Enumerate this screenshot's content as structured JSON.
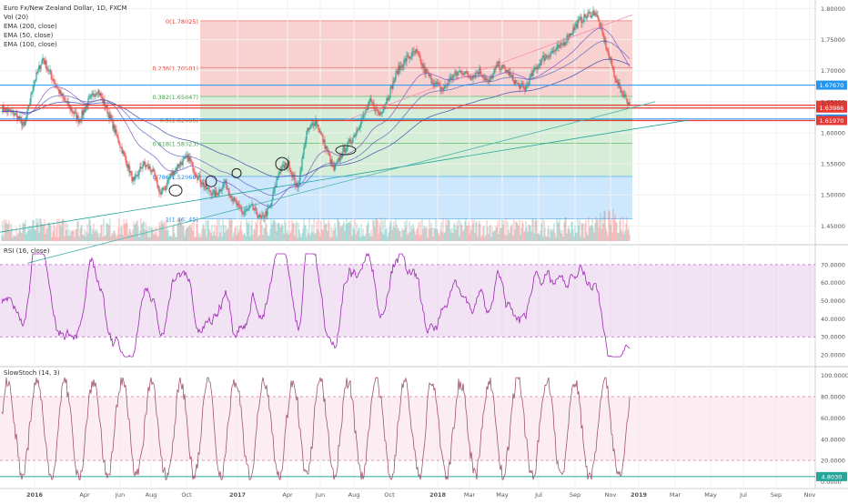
{
  "header": {
    "title": "Euro Fx/New Zealand Dollar, 1D, FXCM",
    "indicators": [
      "Vol (20)",
      "EMA (200, close)",
      "EMA (50, close)",
      "EMA (100, close)"
    ]
  },
  "panes": {
    "rsi_title": "RSI (16, close)",
    "stoch_title": "SlowStoch (14, 3)"
  },
  "colors": {
    "up": "#26a69a",
    "down": "#ef5350",
    "rsi": "#9c27b0",
    "stoch": "#a0546a",
    "fib_red": "#ef9a9a",
    "fib_green": "#a5d6a7",
    "fib_blue": "#90caf9"
  },
  "chart_data": [
    {
      "type": "candlestick",
      "pane": "price",
      "ylim": [
        1.43,
        1.805
      ],
      "y_ticks": [
        "1.80000",
        "1.75000",
        "1.70000",
        "1.65000",
        "1.60000",
        "1.55000",
        "1.50000",
        "1.45000"
      ],
      "x_ticks": [
        "2016",
        "Apr",
        "Jun",
        "Aug",
        "Oct",
        "2017",
        "Apr",
        "Jun",
        "Aug",
        "Oct",
        "2018",
        "Mar",
        "May",
        "Jul",
        "Sep",
        "Nov",
        "2019",
        "Mar",
        "May",
        "Jul",
        "Sep",
        "Nov"
      ],
      "fib_levels": [
        {
          "label": "0(1.78025)",
          "value": 1.78025
        },
        {
          "label": "0.236(1.70501)",
          "value": 1.70501
        },
        {
          "label": "0.382(1.65847)",
          "value": 1.65847
        },
        {
          "label": "0.5(1.62085)",
          "value": 1.62085
        },
        {
          "label": "0.618(1.58323)",
          "value": 1.58323
        },
        {
          "label": "0.786(1.52968)",
          "value": 1.52968
        },
        {
          "label": "1(1.46145)",
          "value": 1.46145
        }
      ],
      "price_labels": [
        {
          "text": "1.67670",
          "value": 1.6767,
          "color": "#2196f3"
        },
        {
          "text": "1.64438",
          "value": 1.64438,
          "color": "#e53935"
        },
        {
          "text": "1.63986",
          "value": 1.63986,
          "color": "#e53935"
        },
        {
          "text": "1.62220",
          "value": 1.6222,
          "color": "#2196f3"
        },
        {
          "text": "1.61970",
          "value": 1.6197,
          "color": "#e53935"
        }
      ],
      "close_anchors": [
        [
          0,
          1.64
        ],
        [
          15,
          1.63
        ],
        [
          25,
          1.61
        ],
        [
          35,
          1.68
        ],
        [
          45,
          1.72
        ],
        [
          55,
          1.69
        ],
        [
          65,
          1.66
        ],
        [
          75,
          1.64
        ],
        [
          85,
          1.62
        ],
        [
          95,
          1.65
        ],
        [
          105,
          1.67
        ],
        [
          115,
          1.64
        ],
        [
          125,
          1.6
        ],
        [
          135,
          1.56
        ],
        [
          145,
          1.52
        ],
        [
          155,
          1.55
        ],
        [
          165,
          1.54
        ],
        [
          175,
          1.5
        ],
        [
          185,
          1.53
        ],
        [
          195,
          1.55
        ],
        [
          205,
          1.56
        ],
        [
          215,
          1.53
        ],
        [
          225,
          1.51
        ],
        [
          235,
          1.5
        ],
        [
          245,
          1.52
        ],
        [
          255,
          1.49
        ],
        [
          265,
          1.47
        ],
        [
          275,
          1.48
        ],
        [
          285,
          1.46
        ],
        [
          295,
          1.48
        ],
        [
          305,
          1.54
        ],
        [
          315,
          1.55
        ],
        [
          325,
          1.51
        ],
        [
          335,
          1.6
        ],
        [
          345,
          1.62
        ],
        [
          355,
          1.58
        ],
        [
          365,
          1.54
        ],
        [
          375,
          1.57
        ],
        [
          385,
          1.59
        ],
        [
          395,
          1.62
        ],
        [
          405,
          1.65
        ],
        [
          415,
          1.63
        ],
        [
          425,
          1.66
        ],
        [
          435,
          1.7
        ],
        [
          445,
          1.72
        ],
        [
          455,
          1.73
        ],
        [
          465,
          1.7
        ],
        [
          475,
          1.68
        ],
        [
          485,
          1.67
        ],
        [
          495,
          1.69
        ],
        [
          505,
          1.7
        ],
        [
          515,
          1.69
        ],
        [
          525,
          1.7
        ],
        [
          535,
          1.68
        ],
        [
          545,
          1.71
        ],
        [
          555,
          1.7
        ],
        [
          565,
          1.68
        ],
        [
          575,
          1.67
        ],
        [
          585,
          1.7
        ],
        [
          595,
          1.72
        ],
        [
          605,
          1.73
        ],
        [
          615,
          1.74
        ],
        [
          625,
          1.76
        ],
        [
          635,
          1.78
        ],
        [
          645,
          1.79
        ],
        [
          652,
          1.795
        ],
        [
          660,
          1.76
        ],
        [
          668,
          1.72
        ],
        [
          676,
          1.68
        ],
        [
          684,
          1.66
        ],
        [
          690,
          1.645
        ]
      ]
    },
    {
      "type": "bar",
      "pane": "volume",
      "name": "Vol (20)"
    },
    {
      "type": "line",
      "pane": "rsi",
      "name": "RSI (16, close)",
      "ylim": [
        15,
        78
      ],
      "y_ticks": [
        "70.0000",
        "60.0000",
        "50.0000",
        "40.0000",
        "30.0000",
        "20.0000"
      ],
      "band": [
        30,
        70
      ],
      "last_value_region": 28
    },
    {
      "type": "line",
      "pane": "stoch",
      "name": "SlowStoch (14, 3)",
      "ylim": [
        -3,
        104
      ],
      "y_ticks": [
        "100.0000",
        "80.0000",
        "60.0000",
        "40.0000",
        "20.0000",
        "0.0000"
      ],
      "band": [
        20,
        80
      ],
      "last_label": "4.8030"
    }
  ]
}
